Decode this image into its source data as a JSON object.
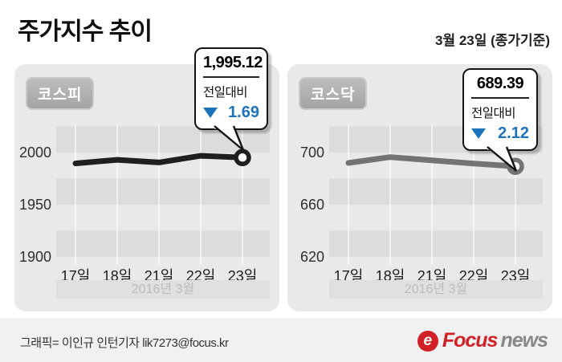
{
  "header": {
    "title": "주가지수 추이",
    "date_note": "3월 23일 (종가기준)"
  },
  "chart_data": [
    {
      "id": "kospi",
      "type": "line",
      "badge": "코스피",
      "callout": {
        "value": "1,995.12",
        "change_label": "전일대비",
        "direction": "down",
        "change": "1.69"
      },
      "categories": [
        "17일",
        "18일",
        "21일",
        "22일",
        "23일"
      ],
      "values": [
        1989.5,
        1993.0,
        1990.5,
        1996.81,
        1995.12
      ],
      "y_ticks": [
        2000,
        1950,
        1900
      ],
      "ylim": [
        1892,
        2027
      ],
      "period_label": "2016년 3월",
      "line_color": "#1f1f1f",
      "legend": "none",
      "grid": "horizontal-bands-and-vertical-lines"
    },
    {
      "id": "kosdaq",
      "type": "line",
      "badge": "코스닥",
      "callout": {
        "value": "689.39",
        "change_label": "전일대비",
        "direction": "down",
        "change": "2.12"
      },
      "categories": [
        "17일",
        "18일",
        "21일",
        "22일",
        "23일"
      ],
      "values": [
        692.0,
        696.5,
        694.0,
        691.51,
        689.39
      ],
      "y_ticks": [
        700,
        660,
        620
      ],
      "ylim": [
        614,
        721
      ],
      "period_label": "2016년 3월",
      "line_color": "#737373",
      "legend": "none",
      "grid": "horizontal-bands-and-vertical-lines"
    }
  ],
  "footer": {
    "credit": "그래픽= 이인규 인턴기자 lik7273@focus.kr",
    "logo": {
      "icon": "focus-news-e-icon",
      "icon_glyph": "e",
      "focus": "Focus",
      "news": "news"
    }
  },
  "colors": {
    "accent_blue": "#1e74ba",
    "panel_bg": "#e9e9e9",
    "band_dark": "#dcdcdc",
    "logo_red": "#d22027",
    "logo_gray": "#85878a"
  }
}
